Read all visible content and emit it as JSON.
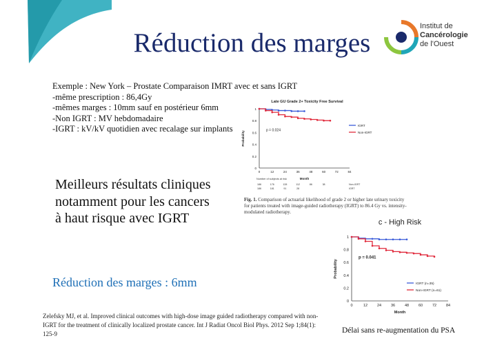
{
  "slide": {
    "title": "Réduction des marges",
    "logo": {
      "line1": "Institut de",
      "line2": "Cancérologie",
      "line3": "de l'Ouest"
    },
    "example_heading": "Exemple : New York – Prostate Comparaison IMRT avec et sans IGRT",
    "bullets": [
      "-même prescription : 86,4Gy",
      "-mêmes marges : 10mm sauf en postérieur 6mm",
      "-Non IGRT : MV hebdomadaire",
      "-IGRT : kV/kV quotidien avec recalage sur implants"
    ],
    "result_lines": [
      "Meilleurs résultats cliniques",
      "notamment pour les cancers",
      "à haut risque avec IGRT"
    ],
    "margin_reduction": "Réduction des marges : 6mm",
    "reference": "Zelefsky MJ, et al. Improved clinical outcomes with high-dose image guided radiotherapy compared with non-IGRT for the treatment of clinically localized prostate cancer. Int J Radiat Oncol Biol Phys. 2012 Sep 1;84(1): 125-9",
    "psa_note": "Délai sans re-augmentation du PSA",
    "fig_caption_label": "Fig. 1.",
    "fig_caption_text": "Comparison of actuarial likelihood of grade 2 or higher late urinary toxicity for patients treated with image-guided radiotherapy (IGRT) to 86.4 Gy vs. intensity-modulated radiotherapy.",
    "colors": {
      "title": "#1a2a6b",
      "blue_text": "#1e6fb6",
      "igrt": "#3a5bd9",
      "non_igrt": "#e0283a",
      "corner": "#1fa6b8"
    }
  },
  "chart_data": [
    {
      "type": "line",
      "title": "Late GU Grade 2+ Toxicity Free Survival",
      "xlabel": "Month",
      "ylabel": "Probability",
      "xticks": [
        0,
        12,
        24,
        36,
        48,
        60,
        72,
        84
      ],
      "yticks": [
        0,
        0.2,
        0.4,
        0.6,
        0.8,
        1
      ],
      "xlim": [
        0,
        84
      ],
      "ylim": [
        0,
        1
      ],
      "annotation": "p = 0.024",
      "legend_position": "right",
      "at_risk_label": "Number of subjects at risk",
      "at_risk_rows": [
        {
          "label": "Non-IGRT",
          "values": [
            "186",
            "176",
            "128",
            "112",
            "86",
            "38"
          ]
        },
        {
          "label": "IGRT",
          "values": [
            "186",
            "181",
            "91",
            "28",
            "",
            ""
          ]
        }
      ],
      "series": [
        {
          "name": "IGRT",
          "color": "#3a5bd9",
          "x": [
            0,
            6,
            12,
            18,
            24,
            30,
            36,
            42
          ],
          "y": [
            1,
            0.99,
            0.98,
            0.97,
            0.97,
            0.96,
            0.96,
            0.96
          ]
        },
        {
          "name": "Non-IGRT",
          "color": "#e0283a",
          "x": [
            0,
            6,
            12,
            18,
            24,
            30,
            36,
            42,
            48,
            54,
            60,
            66
          ],
          "y": [
            1,
            0.97,
            0.94,
            0.9,
            0.87,
            0.86,
            0.84,
            0.83,
            0.82,
            0.81,
            0.8,
            0.8
          ]
        }
      ]
    },
    {
      "type": "line",
      "title": "c - High Risk",
      "xlabel": "Month",
      "ylabel": "Probability",
      "xticks": [
        0,
        12,
        24,
        36,
        48,
        60,
        72,
        84
      ],
      "yticks": [
        0,
        0.2,
        0.4,
        0.6,
        0.8,
        1
      ],
      "xlim": [
        0,
        84
      ],
      "ylim": [
        0,
        1
      ],
      "annotation": "p = 0.041",
      "legend_position": "bottom-right",
      "series": [
        {
          "name": "IGRT (n=35)",
          "color": "#3a5bd9",
          "x": [
            0,
            6,
            12,
            18,
            24,
            30,
            36,
            42,
            48
          ],
          "y": [
            1,
            0.98,
            0.97,
            0.97,
            0.96,
            0.96,
            0.96,
            0.96,
            0.96
          ]
        },
        {
          "name": "Non-IGRT (n=61)",
          "color": "#e0283a",
          "x": [
            0,
            6,
            12,
            18,
            24,
            30,
            36,
            42,
            48,
            54,
            60,
            66,
            72
          ],
          "y": [
            1,
            0.97,
            0.93,
            0.86,
            0.82,
            0.79,
            0.77,
            0.76,
            0.75,
            0.74,
            0.72,
            0.7,
            0.69
          ]
        }
      ]
    }
  ]
}
